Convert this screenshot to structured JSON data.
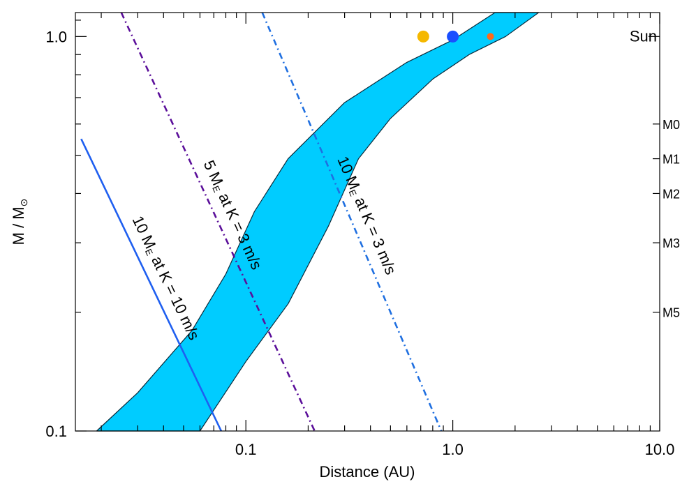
{
  "chart_data": {
    "type": "line",
    "xlabel": "Distance (AU)",
    "ylabel": "M / M",
    "ylabel_symbol": "⊙",
    "xscale": "log",
    "yscale": "log",
    "xlim": [
      0.015,
      10.0
    ],
    "ylim": [
      0.1,
      1.15
    ],
    "x_ticks": [
      {
        "value": 0.1,
        "label": "0.1"
      },
      {
        "value": 1.0,
        "label": "1.0"
      },
      {
        "value": 10.0,
        "label": "10.0"
      }
    ],
    "y_ticks": [
      {
        "value": 0.1,
        "label": "0.1"
      },
      {
        "value": 1.0,
        "label": "1.0"
      }
    ],
    "spectral_types": [
      {
        "label": "Sun",
        "mass": 1.0
      },
      {
        "label": "M0",
        "mass": 0.6
      },
      {
        "label": "M1",
        "mass": 0.49
      },
      {
        "label": "M2",
        "mass": 0.4
      },
      {
        "label": "M3",
        "mass": 0.3
      },
      {
        "label": "M5",
        "mass": 0.2
      }
    ],
    "habitable_zone": {
      "color": "#00ccff",
      "outer_edge": [
        [
          0.06,
          0.1
        ],
        [
          0.1,
          0.15
        ],
        [
          0.16,
          0.21
        ],
        [
          0.25,
          0.33
        ],
        [
          0.35,
          0.49
        ],
        [
          0.5,
          0.62
        ],
        [
          0.8,
          0.78
        ],
        [
          1.2,
          0.9
        ],
        [
          1.8,
          1.0
        ],
        [
          2.6,
          1.15
        ]
      ],
      "inner_edge": [
        [
          0.019,
          0.1
        ],
        [
          0.03,
          0.125
        ],
        [
          0.055,
          0.18
        ],
        [
          0.08,
          0.25
        ],
        [
          0.11,
          0.36
        ],
        [
          0.16,
          0.49
        ],
        [
          0.3,
          0.68
        ],
        [
          0.6,
          0.86
        ],
        [
          1.0,
          0.98
        ],
        [
          1.6,
          1.15
        ]
      ]
    },
    "series": [
      {
        "name": "10 M",
        "sub": "E",
        "tail": " at K = 10 m/s",
        "color": "#1f5ff0",
        "dash": "solid",
        "points": [
          [
            0.016,
            0.55
          ],
          [
            0.076,
            0.1
          ]
        ]
      },
      {
        "name": "5 M",
        "sub": "E",
        "tail": " at K = 3 m/s",
        "color": "#5b0f9a",
        "dash": "dashdot",
        "points": [
          [
            0.025,
            1.15
          ],
          [
            0.215,
            0.1
          ]
        ]
      },
      {
        "name": "10 M",
        "sub": "E",
        "tail": " at K = 3 m/s",
        "color": "#1f6fe0",
        "dash": "dashdot",
        "points": [
          [
            0.12,
            1.15
          ],
          [
            0.88,
            0.1
          ]
        ]
      }
    ],
    "planets": [
      {
        "x": 0.72,
        "y": 1.0,
        "color": "#f5b800",
        "size": "large"
      },
      {
        "x": 1.0,
        "y": 1.0,
        "color": "#1a4fff",
        "size": "large"
      },
      {
        "x": 1.52,
        "y": 1.0,
        "color": "#ff6a1a",
        "size": "small"
      }
    ],
    "grid": false,
    "legend": "none"
  }
}
